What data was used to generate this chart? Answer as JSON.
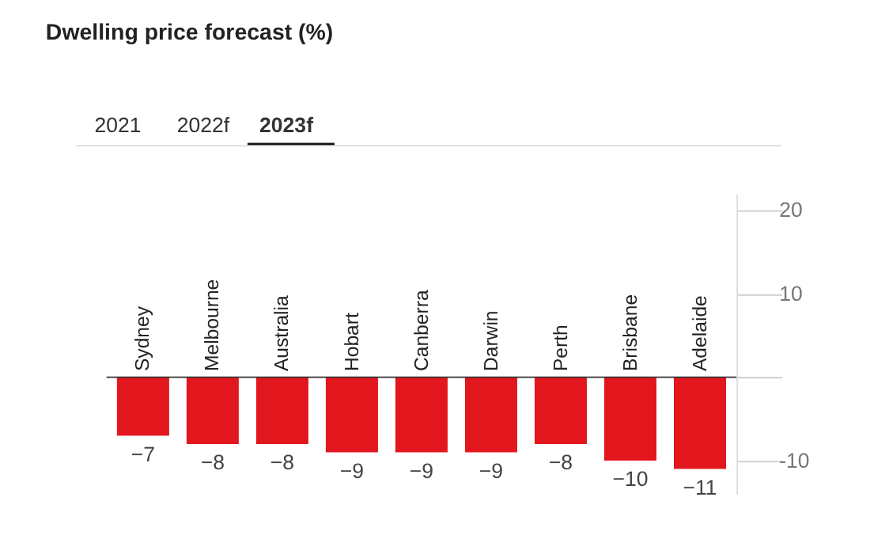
{
  "chart_data": {
    "type": "bar",
    "title": "Dwelling price forecast (%)",
    "annotations": [
      "2021",
      "2022f",
      "2023f"
    ],
    "categories": [
      "Sydney",
      "Melbourne",
      "Australia",
      "Hobart",
      "Canberra",
      "Darwin",
      "Perth",
      "Brisbane",
      "Adelaide"
    ],
    "values": [
      -7,
      -8,
      -8,
      -9,
      -9,
      -9,
      -8,
      -10,
      -11
    ],
    "color": "#e2171d",
    "ylim": [
      -14,
      22
    ],
    "yticks": [
      20,
      10,
      {
        "value": 0,
        "label": null
      },
      -10
    ],
    "data_labels": true,
    "grid": false
  }
}
